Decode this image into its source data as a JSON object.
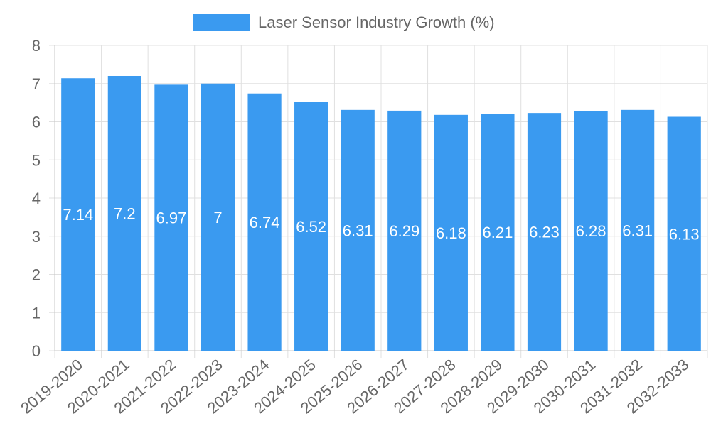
{
  "chart_data": {
    "type": "bar",
    "title": "",
    "xlabel": "",
    "ylabel": "",
    "ylim": [
      0,
      8
    ],
    "yticks": [
      0,
      1,
      2,
      3,
      4,
      5,
      6,
      7,
      8
    ],
    "grid": true,
    "legend_position": "top-center",
    "categories": [
      "2019-2020",
      "2020-2021",
      "2021-2022",
      "2022-2023",
      "2023-2024",
      "2024-2025",
      "2025-2026",
      "2026-2027",
      "2027-2028",
      "2028-2029",
      "2029-2030",
      "2030-2031",
      "2031-2032",
      "2032-2033"
    ],
    "series": [
      {
        "name": "Laser Sensor Industry Growth (%)",
        "color": "#3a9af0",
        "values": [
          7.14,
          7.2,
          6.97,
          7,
          6.74,
          6.52,
          6.31,
          6.29,
          6.18,
          6.21,
          6.23,
          6.28,
          6.31,
          6.13
        ],
        "labels": [
          "7.14",
          "7.2",
          "6.97",
          "7",
          "6.74",
          "6.52",
          "6.31",
          "6.29",
          "6.18",
          "6.21",
          "6.23",
          "6.28",
          "6.31",
          "6.13"
        ]
      }
    ]
  }
}
